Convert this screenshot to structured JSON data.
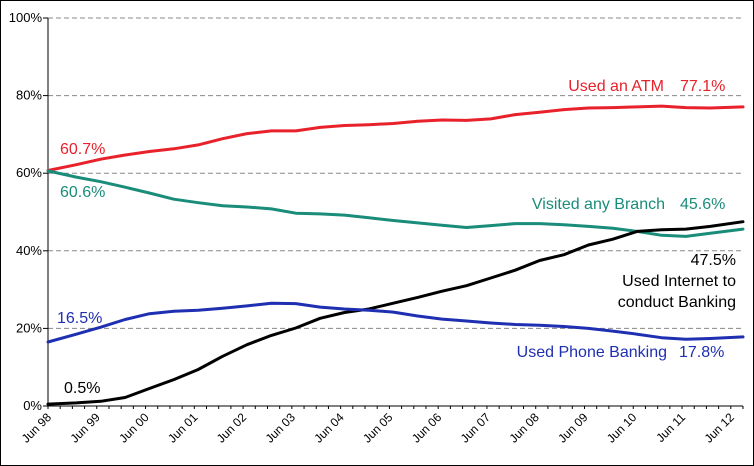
{
  "chart_data": {
    "type": "line",
    "y_ticks": [
      "0%",
      "20%",
      "40%",
      "60%",
      "80%",
      "100%"
    ],
    "ylim": [
      0,
      100
    ],
    "grid": "horizontal dashed",
    "x_ticks": [
      "Jun 98",
      "Jun 99",
      "Jun 00",
      "Jun 01",
      "Jun 02",
      "Jun 03",
      "Jun 04",
      "Jun 05",
      "Jun 06",
      "Jun 07",
      "Jun 08",
      "Jun 09",
      "Jun 10",
      "Jun 11",
      "Jun 12"
    ],
    "xlim": [
      1998.42,
      2012.67
    ],
    "series": [
      {
        "key": "atm",
        "color": "#e8212b",
        "points": [
          [
            1998.42,
            60.7
          ],
          [
            1999.0,
            62.2
          ],
          [
            1999.5,
            63.6
          ],
          [
            2000.0,
            64.7
          ],
          [
            2000.5,
            65.6
          ],
          [
            2001.0,
            66.3
          ],
          [
            2001.5,
            67.3
          ],
          [
            2002.0,
            68.9
          ],
          [
            2002.5,
            70.2
          ],
          [
            2003.0,
            70.9
          ],
          [
            2003.5,
            70.9
          ],
          [
            2004.0,
            71.8
          ],
          [
            2004.5,
            72.3
          ],
          [
            2005.0,
            72.5
          ],
          [
            2005.5,
            72.8
          ],
          [
            2006.0,
            73.4
          ],
          [
            2006.5,
            73.7
          ],
          [
            2007.0,
            73.6
          ],
          [
            2007.5,
            74.0
          ],
          [
            2008.0,
            75.1
          ],
          [
            2008.5,
            75.7
          ],
          [
            2009.0,
            76.4
          ],
          [
            2009.5,
            76.8
          ],
          [
            2010.0,
            76.9
          ],
          [
            2010.5,
            77.1
          ],
          [
            2011.0,
            77.3
          ],
          [
            2011.5,
            76.9
          ],
          [
            2012.0,
            76.8
          ],
          [
            2012.67,
            77.1
          ]
        ],
        "label_lines": [
          "Used an ATM"
        ],
        "start_label": "60.7%",
        "end_label": "77.1%"
      },
      {
        "key": "branch",
        "color": "#1a8c7a",
        "points": [
          [
            1998.42,
            60.6
          ],
          [
            1999.0,
            59.0
          ],
          [
            1999.5,
            57.8
          ],
          [
            2000.0,
            56.4
          ],
          [
            2000.5,
            54.9
          ],
          [
            2001.0,
            53.3
          ],
          [
            2001.5,
            52.4
          ],
          [
            2002.0,
            51.6
          ],
          [
            2002.5,
            51.3
          ],
          [
            2003.0,
            50.8
          ],
          [
            2003.5,
            49.7
          ],
          [
            2004.0,
            49.5
          ],
          [
            2004.5,
            49.2
          ],
          [
            2005.0,
            48.5
          ],
          [
            2005.5,
            47.8
          ],
          [
            2006.0,
            47.2
          ],
          [
            2006.5,
            46.6
          ],
          [
            2007.0,
            46.0
          ],
          [
            2007.5,
            46.5
          ],
          [
            2008.0,
            47.0
          ],
          [
            2008.5,
            47.0
          ],
          [
            2009.0,
            46.7
          ],
          [
            2009.5,
            46.3
          ],
          [
            2010.0,
            45.8
          ],
          [
            2010.5,
            45.0
          ],
          [
            2011.0,
            44.0
          ],
          [
            2011.5,
            43.7
          ],
          [
            2012.0,
            44.5
          ],
          [
            2012.67,
            45.6
          ]
        ],
        "label_lines": [
          "Visited any Branch"
        ],
        "start_label": "60.6%",
        "end_label": "45.6%"
      },
      {
        "key": "internet",
        "color": "#000000",
        "points": [
          [
            1998.42,
            0.5
          ],
          [
            1999.0,
            0.8
          ],
          [
            1999.5,
            1.2
          ],
          [
            2000.0,
            2.2
          ],
          [
            2000.5,
            4.5
          ],
          [
            2001.0,
            6.8
          ],
          [
            2001.5,
            9.4
          ],
          [
            2002.0,
            12.8
          ],
          [
            2002.5,
            15.8
          ],
          [
            2003.0,
            18.2
          ],
          [
            2003.5,
            20.1
          ],
          [
            2004.0,
            22.6
          ],
          [
            2004.5,
            24.1
          ],
          [
            2005.0,
            25.0
          ],
          [
            2005.5,
            26.5
          ],
          [
            2006.0,
            28.0
          ],
          [
            2006.5,
            29.6
          ],
          [
            2007.0,
            31.0
          ],
          [
            2007.5,
            33.0
          ],
          [
            2008.0,
            35.0
          ],
          [
            2008.5,
            37.5
          ],
          [
            2009.0,
            39.0
          ],
          [
            2009.5,
            41.5
          ],
          [
            2010.0,
            43.0
          ],
          [
            2010.5,
            45.0
          ],
          [
            2011.0,
            45.4
          ],
          [
            2011.5,
            45.6
          ],
          [
            2012.0,
            46.3
          ],
          [
            2012.67,
            47.5
          ]
        ],
        "label_lines": [
          "Used Internet to",
          "conduct Banking"
        ],
        "start_label": "0.5%",
        "end_label": "47.5%"
      },
      {
        "key": "phone",
        "color": "#1f2fb1",
        "points": [
          [
            1998.42,
            16.5
          ],
          [
            1999.0,
            18.5
          ],
          [
            1999.5,
            20.3
          ],
          [
            2000.0,
            22.3
          ],
          [
            2000.5,
            23.8
          ],
          [
            2001.0,
            24.4
          ],
          [
            2001.5,
            24.7
          ],
          [
            2002.0,
            25.2
          ],
          [
            2002.5,
            25.8
          ],
          [
            2003.0,
            26.5
          ],
          [
            2003.5,
            26.4
          ],
          [
            2004.0,
            25.5
          ],
          [
            2004.5,
            25.0
          ],
          [
            2005.0,
            24.7
          ],
          [
            2005.5,
            24.2
          ],
          [
            2006.0,
            23.2
          ],
          [
            2006.5,
            22.4
          ],
          [
            2007.0,
            21.9
          ],
          [
            2007.5,
            21.4
          ],
          [
            2008.0,
            21.0
          ],
          [
            2008.5,
            20.8
          ],
          [
            2009.0,
            20.5
          ],
          [
            2009.5,
            20.0
          ],
          [
            2010.0,
            19.3
          ],
          [
            2010.5,
            18.5
          ],
          [
            2011.0,
            17.6
          ],
          [
            2011.5,
            17.2
          ],
          [
            2012.0,
            17.4
          ],
          [
            2012.67,
            17.8
          ]
        ],
        "label_lines": [
          "Used Phone Banking"
        ],
        "start_label": "16.5%",
        "end_label": "17.8%"
      }
    ]
  }
}
